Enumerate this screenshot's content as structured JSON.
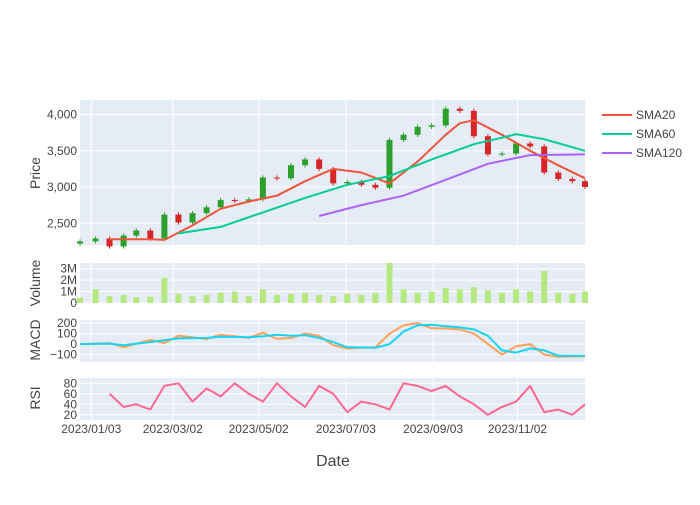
{
  "chart_data": {
    "type": "line",
    "xlabel": "Date",
    "x_ticks": [
      "2023/01/03",
      "2023/03/02",
      "2023/05/02",
      "2023/07/03",
      "2023/09/03",
      "2023/11/02"
    ],
    "x_range": [
      "2022/12/26",
      "2023/12/20"
    ],
    "legend": {
      "placement": "top-right",
      "entries": [
        "SMA20",
        "SMA60",
        "SMA120"
      ]
    },
    "colors": {
      "plot_bg": "#e5ecf6",
      "grid": "#ffffff",
      "increasing": "#2ca02c",
      "decreasing": "#d62728",
      "sma20": "#ef553b",
      "sma60": "#00cc96",
      "sma120": "#ab63fa",
      "volume": "#b6e880",
      "macd": "#ffa15a",
      "signal": "#19d3f3",
      "rsi": "#ff6692"
    },
    "panels": [
      {
        "id": "price",
        "ylabel": "Price",
        "yrange": [
          2200,
          4200
        ],
        "y_ticks": [
          2500,
          3000,
          3500,
          4000
        ],
        "y_tick_labels": [
          "2,500",
          "3,000",
          "3,500",
          "4,000"
        ],
        "candles": {
          "dates": [
            "2022/12/26",
            "2023/01/06",
            "2023/01/16",
            "2023/01/26",
            "2023/02/04",
            "2023/02/14",
            "2023/02/24",
            "2023/03/06",
            "2023/03/16",
            "2023/03/26",
            "2023/04/05",
            "2023/04/15",
            "2023/04/25",
            "2023/05/05",
            "2023/05/15",
            "2023/05/25",
            "2023/06/04",
            "2023/06/14",
            "2023/06/24",
            "2023/07/04",
            "2023/07/14",
            "2023/07/24",
            "2023/08/03",
            "2023/08/13",
            "2023/08/23",
            "2023/09/02",
            "2023/09/12",
            "2023/09/22",
            "2023/10/02",
            "2023/10/12",
            "2023/10/22",
            "2023/11/01",
            "2023/11/11",
            "2023/11/21",
            "2023/12/01",
            "2023/12/11",
            "2023/12/20"
          ],
          "close": [
            2250,
            2290,
            2180,
            2330,
            2400,
            2290,
            2620,
            2510,
            2640,
            2720,
            2820,
            2810,
            2830,
            3130,
            3120,
            3300,
            3380,
            3250,
            3050,
            3070,
            3030,
            2990,
            3650,
            3720,
            3830,
            3850,
            4080,
            4050,
            3700,
            3450,
            3460,
            3600,
            3560,
            3200,
            3110,
            3080,
            3000
          ]
        },
        "series": [
          {
            "name": "SMA20",
            "dates": [
              "2023/01/16",
              "2023/02/14",
              "2023/02/24",
              "2023/03/16",
              "2023/04/05",
              "2023/04/25",
              "2023/05/15",
              "2023/06/04",
              "2023/06/24",
              "2023/07/14",
              "2023/08/03",
              "2023/08/23",
              "2023/09/12",
              "2023/09/22",
              "2023/10/02",
              "2023/10/22",
              "2023/11/11",
              "2023/12/01",
              "2023/12/20"
            ],
            "values": [
              2280,
              2280,
              2270,
              2470,
              2700,
              2800,
              2880,
              3080,
              3250,
              3200,
              3050,
              3350,
              3720,
              3880,
              3920,
              3720,
              3500,
              3300,
              3120
            ]
          },
          {
            "name": "SMA60",
            "dates": [
              "2023/03/06",
              "2023/04/05",
              "2023/05/05",
              "2023/06/04",
              "2023/07/04",
              "2023/08/03",
              "2023/09/02",
              "2023/10/02",
              "2023/10/22",
              "2023/11/01",
              "2023/11/21",
              "2023/12/20"
            ],
            "values": [
              2360,
              2450,
              2650,
              2850,
              3030,
              3150,
              3380,
              3590,
              3680,
              3730,
              3660,
              3500
            ]
          },
          {
            "name": "SMA120",
            "dates": [
              "2023/06/14",
              "2023/07/14",
              "2023/08/13",
              "2023/09/12",
              "2023/10/12",
              "2023/11/11",
              "2023/12/20"
            ],
            "values": [
              2600,
              2750,
              2880,
              3100,
              3320,
              3440,
              3450
            ]
          }
        ]
      },
      {
        "id": "volume",
        "ylabel": "Volume",
        "yrange": [
          0,
          3500000
        ],
        "y_ticks": [
          0,
          1000000,
          2000000,
          3000000
        ],
        "y_tick_labels": [
          "0",
          "1M",
          "2M",
          "3M"
        ],
        "bars": {
          "dates": [
            "2022/12/26",
            "2023/01/06",
            "2023/01/16",
            "2023/01/26",
            "2023/02/04",
            "2023/02/14",
            "2023/02/24",
            "2023/03/06",
            "2023/03/16",
            "2023/03/26",
            "2023/04/05",
            "2023/04/15",
            "2023/04/25",
            "2023/05/05",
            "2023/05/15",
            "2023/05/25",
            "2023/06/04",
            "2023/06/14",
            "2023/06/24",
            "2023/07/04",
            "2023/07/14",
            "2023/07/24",
            "2023/08/03",
            "2023/08/13",
            "2023/08/23",
            "2023/09/02",
            "2023/09/12",
            "2023/09/22",
            "2023/10/02",
            "2023/10/12",
            "2023/10/22",
            "2023/11/01",
            "2023/11/11",
            "2023/11/21",
            "2023/12/01",
            "2023/12/11",
            "2023/12/20"
          ],
          "values": [
            450000,
            1200000,
            600000,
            700000,
            500000,
            550000,
            2200000,
            800000,
            600000,
            700000,
            900000,
            1000000,
            600000,
            1200000,
            700000,
            800000,
            900000,
            700000,
            600000,
            800000,
            700000,
            900000,
            3500000,
            1200000,
            900000,
            1000000,
            1300000,
            1200000,
            1400000,
            1100000,
            900000,
            1200000,
            1000000,
            2800000,
            900000,
            800000,
            1000000
          ]
        }
      },
      {
        "id": "macd",
        "ylabel": "MACD",
        "yrange": [
          -170,
          230
        ],
        "y_ticks": [
          -100,
          0,
          100,
          200
        ],
        "y_tick_labels": [
          "−100",
          "0",
          "100",
          "200"
        ],
        "series": [
          {
            "name": "MACD",
            "dates": [
              "2022/12/26",
              "2023/01/16",
              "2023/01/26",
              "2023/02/14",
              "2023/02/24",
              "2023/03/06",
              "2023/03/26",
              "2023/04/05",
              "2023/04/25",
              "2023/05/05",
              "2023/05/15",
              "2023/05/25",
              "2023/06/04",
              "2023/06/14",
              "2023/06/24",
              "2023/07/04",
              "2023/07/24",
              "2023/08/03",
              "2023/08/13",
              "2023/08/23",
              "2023/09/02",
              "2023/09/12",
              "2023/09/22",
              "2023/10/02",
              "2023/10/12",
              "2023/10/22",
              "2023/11/01",
              "2023/11/11",
              "2023/11/21",
              "2023/12/01",
              "2023/12/20"
            ],
            "values": [
              0,
              10,
              -30,
              40,
              10,
              80,
              50,
              90,
              60,
              110,
              50,
              60,
              100,
              80,
              -10,
              -40,
              -30,
              100,
              180,
              200,
              150,
              150,
              140,
              100,
              0,
              -100,
              -20,
              0,
              -100,
              -120,
              -115
            ]
          },
          {
            "name": "Signal",
            "dates": [
              "2022/12/26",
              "2023/01/16",
              "2023/01/26",
              "2023/02/14",
              "2023/03/06",
              "2023/03/26",
              "2023/04/05",
              "2023/04/25",
              "2023/05/05",
              "2023/05/15",
              "2023/05/25",
              "2023/06/04",
              "2023/06/14",
              "2023/06/24",
              "2023/07/04",
              "2023/07/24",
              "2023/08/03",
              "2023/08/13",
              "2023/08/23",
              "2023/09/02",
              "2023/09/12",
              "2023/09/22",
              "2023/10/02",
              "2023/10/12",
              "2023/10/22",
              "2023/11/01",
              "2023/11/11",
              "2023/11/21",
              "2023/12/01",
              "2023/12/20"
            ],
            "values": [
              0,
              5,
              -10,
              20,
              55,
              60,
              70,
              65,
              75,
              90,
              80,
              85,
              60,
              20,
              -30,
              -35,
              0,
              120,
              180,
              185,
              170,
              160,
              140,
              80,
              -60,
              -80,
              -40,
              -60,
              -110,
              -110
            ]
          }
        ]
      },
      {
        "id": "rsi",
        "ylabel": "RSI",
        "yrange": [
          10,
          90
        ],
        "y_ticks": [
          20,
          40,
          60,
          80
        ],
        "y_tick_labels": [
          "20",
          "40",
          "60",
          "80"
        ],
        "series": [
          {
            "name": "RSI",
            "dates": [
              "2023/01/16",
              "2023/01/26",
              "2023/02/04",
              "2023/02/14",
              "2023/02/24",
              "2023/03/06",
              "2023/03/16",
              "2023/03/26",
              "2023/04/05",
              "2023/04/15",
              "2023/04/25",
              "2023/05/05",
              "2023/05/15",
              "2023/05/25",
              "2023/06/04",
              "2023/06/14",
              "2023/06/24",
              "2023/07/04",
              "2023/07/14",
              "2023/07/24",
              "2023/08/03",
              "2023/08/13",
              "2023/08/23",
              "2023/09/02",
              "2023/09/12",
              "2023/09/22",
              "2023/10/02",
              "2023/10/12",
              "2023/10/22",
              "2023/11/01",
              "2023/11/11",
              "2023/11/21",
              "2023/12/01",
              "2023/12/11",
              "2023/12/20"
            ],
            "values": [
              60,
              35,
              40,
              30,
              75,
              80,
              45,
              70,
              55,
              80,
              60,
              45,
              80,
              55,
              35,
              75,
              60,
              25,
              45,
              40,
              30,
              80,
              75,
              65,
              75,
              55,
              40,
              20,
              35,
              45,
              75,
              25,
              30,
              20,
              40
            ]
          }
        ]
      }
    ]
  }
}
